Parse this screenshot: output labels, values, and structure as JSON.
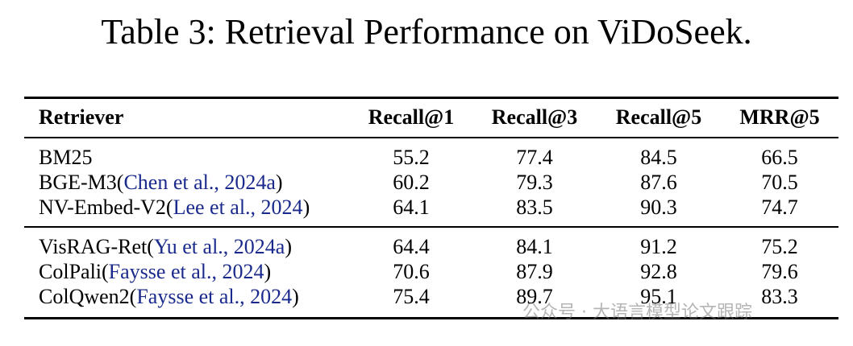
{
  "title": "Table 3: Retrieval Performance on ViDoSeek.",
  "table": {
    "header": [
      "Retriever",
      "Recall@1",
      "Recall@3",
      "Recall@5",
      "MRR@5"
    ],
    "groups": [
      [
        {
          "retriever": [
            {
              "text": "BM25"
            }
          ],
          "values": [
            55.2,
            77.4,
            84.5,
            66.5
          ]
        },
        {
          "retriever": [
            {
              "text": "BGE-M3("
            },
            {
              "text": "Chen et al., 2024a",
              "link": true
            },
            {
              "text": ")"
            }
          ],
          "values": [
            60.2,
            79.3,
            87.6,
            70.5
          ]
        },
        {
          "retriever": [
            {
              "text": "NV-Embed-V2("
            },
            {
              "text": "Lee et al., 2024",
              "link": true
            },
            {
              "text": ")"
            }
          ],
          "values": [
            64.1,
            83.5,
            90.3,
            74.7
          ]
        }
      ],
      [
        {
          "retriever": [
            {
              "text": "VisRAG-Ret("
            },
            {
              "text": "Yu et al., 2024a",
              "link": true
            },
            {
              "text": ")"
            }
          ],
          "values": [
            64.4,
            84.1,
            91.2,
            75.2
          ]
        },
        {
          "retriever": [
            {
              "text": "ColPali("
            },
            {
              "text": "Faysse et al., 2024",
              "link": true
            },
            {
              "text": ")"
            }
          ],
          "values": [
            70.6,
            87.9,
            92.8,
            79.6
          ]
        },
        {
          "retriever": [
            {
              "text": "ColQwen2("
            },
            {
              "text": "Faysse et al., 2024",
              "link": true
            },
            {
              "text": ")"
            }
          ],
          "values": [
            75.4,
            89.7,
            95.1,
            83.3
          ]
        }
      ]
    ]
  },
  "watermark": "公众号 · 大语言模型论文跟踪"
}
